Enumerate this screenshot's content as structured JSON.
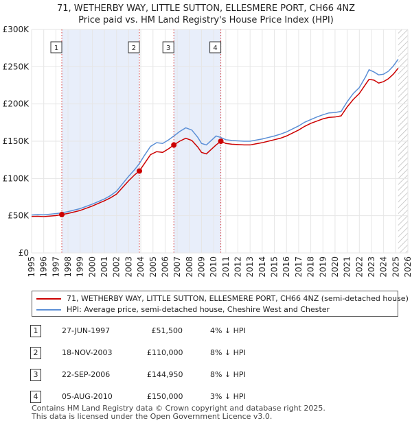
{
  "title_line1": "71, WETHERBY WAY, LITTLE SUTTON, ELLESMERE PORT, CH66 4NZ",
  "title_line2": "Price paid vs. HM Land Registry's House Price Index (HPI)",
  "colors": {
    "property": "#cc0000",
    "hpi": "#5b8fd6",
    "band": "#e8eefa",
    "hatch": "#bbbbbb",
    "grid": "#e6e6e6"
  },
  "chart_data": {
    "type": "line",
    "title": "Price paid vs. HM Land Registry's House Price Index (HPI)",
    "xlabel": "",
    "ylabel": "",
    "xlim": [
      1995,
      2026
    ],
    "ylim": [
      0,
      300000
    ],
    "x_ticks": [
      "1995",
      "1996",
      "1997",
      "1998",
      "1999",
      "2000",
      "2001",
      "2002",
      "2003",
      "2004",
      "2005",
      "2006",
      "2007",
      "2008",
      "2009",
      "2010",
      "2011",
      "2012",
      "2013",
      "2014",
      "2015",
      "2016",
      "2017",
      "2018",
      "2019",
      "2020",
      "2021",
      "2022",
      "2023",
      "2024",
      "2025",
      "2026"
    ],
    "y_ticks": [
      {
        "value": 0,
        "label": "£0"
      },
      {
        "value": 50000,
        "label": "£50K"
      },
      {
        "value": 100000,
        "label": "£100K"
      },
      {
        "value": 150000,
        "label": "£150K"
      },
      {
        "value": 200000,
        "label": "£200K"
      },
      {
        "value": 250000,
        "label": "£250K"
      },
      {
        "value": 300000,
        "label": "£300K"
      }
    ],
    "shaded_periods": [
      [
        1997.49,
        2003.88
      ],
      [
        2006.72,
        2010.59
      ]
    ],
    "future_from": 2025.2,
    "series": [
      {
        "name": "71, WETHERBY WAY, LITTLE SUTTON, ELLESMERE PORT, CH66 4NZ (semi-detached house)",
        "x": [
          1995.0,
          1995.5,
          1996.0,
          1996.5,
          1997.0,
          1997.49,
          1998.0,
          1998.5,
          1999.0,
          1999.5,
          2000.0,
          2000.5,
          2001.0,
          2001.5,
          2002.0,
          2002.5,
          2003.0,
          2003.5,
          2003.88,
          2004.3,
          2004.8,
          2005.3,
          2005.8,
          2006.3,
          2006.72,
          2007.2,
          2007.7,
          2008.2,
          2008.7,
          2009.0,
          2009.4,
          2009.8,
          2010.2,
          2010.59,
          2011.0,
          2011.5,
          2012.0,
          2012.5,
          2013.0,
          2013.5,
          2014.0,
          2014.5,
          2015.0,
          2015.5,
          2016.0,
          2016.5,
          2017.0,
          2017.5,
          2018.0,
          2018.5,
          2019.0,
          2019.5,
          2020.0,
          2020.5,
          2021.0,
          2021.5,
          2022.0,
          2022.5,
          2022.8,
          2023.2,
          2023.6,
          2024.0,
          2024.4,
          2024.8,
          2025.2
        ],
        "y": [
          49000,
          49200,
          48800,
          49500,
          50200,
          51500,
          53000,
          55000,
          57000,
          60000,
          63000,
          66500,
          70000,
          74000,
          79000,
          88000,
          97000,
          105000,
          110000,
          120000,
          132000,
          136000,
          135000,
          140000,
          144950,
          150000,
          154000,
          151000,
          142000,
          135000,
          133000,
          139000,
          145000,
          150000,
          147000,
          146000,
          145500,
          145000,
          145000,
          146500,
          148000,
          150000,
          152000,
          154000,
          157000,
          161000,
          165000,
          170000,
          174000,
          177000,
          180000,
          182000,
          182500,
          184000,
          196000,
          206000,
          214000,
          226000,
          233000,
          232000,
          228000,
          230000,
          234000,
          240000,
          248000
        ]
      },
      {
        "name": "HPI: Average price, semi-detached house, Cheshire West and Chester",
        "x": [
          1995.0,
          1995.5,
          1996.0,
          1996.5,
          1997.0,
          1997.49,
          1998.0,
          1998.5,
          1999.0,
          1999.5,
          2000.0,
          2000.5,
          2001.0,
          2001.5,
          2002.0,
          2002.5,
          2003.0,
          2003.5,
          2003.88,
          2004.3,
          2004.8,
          2005.3,
          2005.8,
          2006.3,
          2006.72,
          2007.2,
          2007.7,
          2008.2,
          2008.7,
          2009.0,
          2009.4,
          2009.8,
          2010.2,
          2010.59,
          2011.0,
          2011.5,
          2012.0,
          2012.5,
          2013.0,
          2013.5,
          2014.0,
          2014.5,
          2015.0,
          2015.5,
          2016.0,
          2016.5,
          2017.0,
          2017.5,
          2018.0,
          2018.5,
          2019.0,
          2019.5,
          2020.0,
          2020.5,
          2021.0,
          2021.5,
          2022.0,
          2022.5,
          2022.8,
          2023.2,
          2023.6,
          2024.0,
          2024.4,
          2024.8,
          2025.2
        ],
        "y": [
          51000,
          51500,
          51200,
          52000,
          52800,
          53800,
          55500,
          57500,
          59500,
          62500,
          65500,
          69000,
          72500,
          77000,
          83000,
          93000,
          103000,
          112000,
          120000,
          131000,
          143000,
          148000,
          147000,
          152000,
          157000,
          163000,
          168000,
          165000,
          155000,
          147000,
          145000,
          151000,
          157000,
          155000,
          152000,
          151000,
          150500,
          150000,
          150000,
          151500,
          153000,
          155000,
          157000,
          159500,
          162500,
          166500,
          170500,
          175500,
          179000,
          182500,
          185500,
          188000,
          188500,
          190000,
          203000,
          214000,
          222000,
          236000,
          246000,
          243000,
          239000,
          240000,
          244000,
          251000,
          260000
        ]
      }
    ],
    "sales": [
      {
        "marker": "1",
        "x": 1997.49,
        "price": 51500
      },
      {
        "marker": "2",
        "x": 2003.88,
        "price": 110000
      },
      {
        "marker": "3",
        "x": 2006.72,
        "price": 144950
      },
      {
        "marker": "4",
        "x": 2010.59,
        "price": 150000
      }
    ]
  },
  "legend": {
    "property_label": "71, WETHERBY WAY, LITTLE SUTTON, ELLESMERE PORT, CH66 4NZ (semi-detached house)",
    "hpi_label": "HPI: Average price, semi-detached house, Cheshire West and Chester"
  },
  "sales_table": [
    {
      "marker": "1",
      "date": "27-JUN-1997",
      "price": "£51,500",
      "hpi": "4% ↓ HPI"
    },
    {
      "marker": "2",
      "date": "18-NOV-2003",
      "price": "£110,000",
      "hpi": "8% ↓ HPI"
    },
    {
      "marker": "3",
      "date": "22-SEP-2006",
      "price": "£144,950",
      "hpi": "8% ↓ HPI"
    },
    {
      "marker": "4",
      "date": "05-AUG-2010",
      "price": "£150,000",
      "hpi": "3% ↓ HPI"
    }
  ],
  "footer": {
    "line1": "Contains HM Land Registry data © Crown copyright and database right 2025.",
    "line2": "This data is licensed under the Open Government Licence v3.0."
  }
}
